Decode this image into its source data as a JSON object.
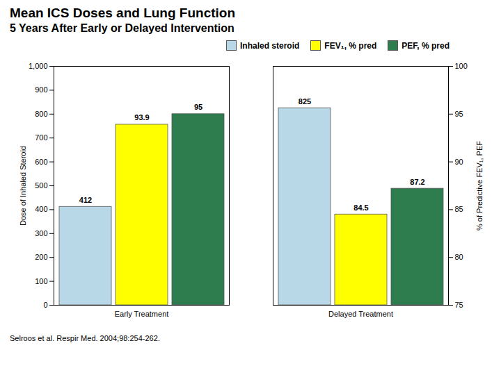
{
  "chart_data": {
    "type": "bar",
    "title": "Mean ICS Doses and Lung Function",
    "subtitle": "5 Years After Early or Delayed Intervention",
    "categories": [
      "Early Treatment",
      "Delayed Treatment"
    ],
    "series": [
      {
        "name": "Inhaled steroid",
        "color": "#b8d8e8",
        "values": [
          412,
          825
        ],
        "axis": "y"
      },
      {
        "name": "FEV₁, % pred",
        "color": "#ffff00",
        "values": [
          93.9,
          84.5
        ],
        "axis": "y2"
      },
      {
        "name": "PEF, % pred",
        "color": "#2e7d4f",
        "values": [
          95,
          87.2
        ],
        "axis": "y2"
      }
    ],
    "ylabel": "Dose of Inhaled Steroid",
    "y2label": "% of Predictive FEV₁, PEF",
    "ylim": [
      0,
      1000
    ],
    "yticks": [
      0,
      100,
      200,
      300,
      400,
      500,
      600,
      700,
      800,
      900,
      1000
    ],
    "y2lim": [
      75,
      100
    ],
    "y2ticks": [
      75,
      80,
      85,
      90,
      95,
      100
    ],
    "data_labels": true,
    "legend": "upper right",
    "grid": false,
    "annotations": [
      "Selroos et al. Respir Med. 2004;98:254-262."
    ]
  }
}
